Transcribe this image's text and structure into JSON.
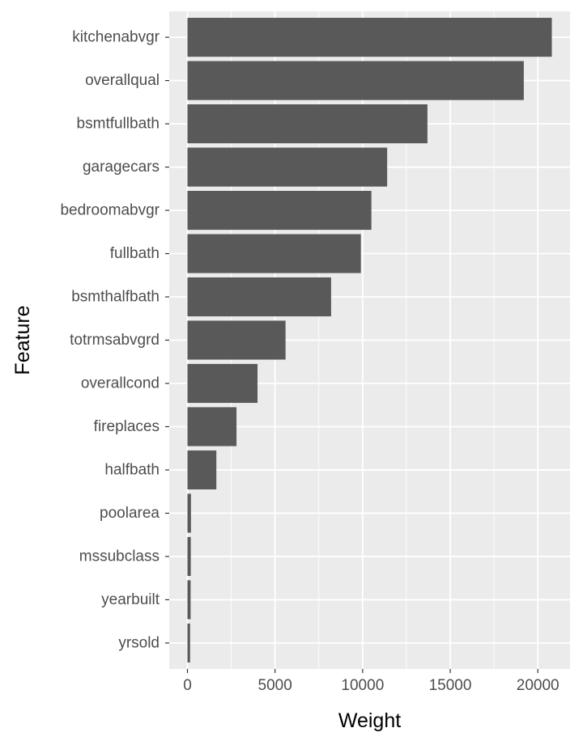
{
  "chart_data": {
    "type": "bar",
    "orientation": "horizontal",
    "xlabel": "Weight",
    "ylabel": "Feature",
    "xlim": [
      -1040,
      21840
    ],
    "x_ticks": [
      0,
      5000,
      10000,
      15000,
      20000
    ],
    "x_minor_ticks": [
      2500,
      7500,
      12500,
      17500
    ],
    "grid": true,
    "legend": "none",
    "categories": [
      "kitchenabvgr",
      "overallqual",
      "bsmtfullbath",
      "garagecars",
      "bedroomabvgr",
      "fullbath",
      "bsmthalfbath",
      "totrmsabvgrd",
      "overallcond",
      "fireplaces",
      "halfbath",
      "poolarea",
      "mssubclass",
      "yearbuilt",
      "yrsold"
    ],
    "values": [
      20800,
      19200,
      13700,
      11400,
      10500,
      9900,
      8200,
      5600,
      4000,
      2800,
      1650,
      200,
      190,
      180,
      150
    ]
  },
  "colors": {
    "panel_background": "#ebebeb",
    "grid_major": "#ffffff",
    "bar_fill": "#595959",
    "tick_text": "#4d4d4d",
    "tick_mark": "#333333",
    "axis_title": "#000000"
  }
}
